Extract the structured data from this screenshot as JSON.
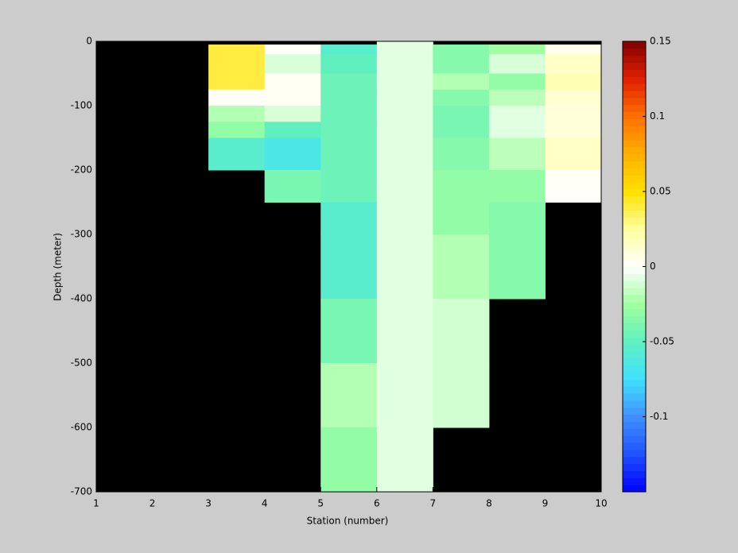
{
  "chart_data": {
    "type": "heatmap",
    "xlabel": "Station (number)",
    "ylabel": "Depth (meter)",
    "x_edges": [
      1,
      2,
      3,
      4,
      5,
      6,
      7,
      8,
      9,
      10
    ],
    "y_edges": [
      0,
      -5,
      -20,
      -30,
      -50,
      -75,
      -100,
      -125,
      -150,
      -200,
      -250,
      -300,
      -400,
      -500,
      -600,
      -700
    ],
    "z": [
      [
        null,
        null,
        null,
        null,
        null,
        -0.008,
        null,
        null,
        null
      ],
      [
        null,
        null,
        0.04,
        0.002,
        -0.055,
        -0.008,
        -0.035,
        -0.025,
        0.005
      ],
      [
        null,
        null,
        0.04,
        -0.01,
        -0.05,
        -0.008,
        -0.035,
        -0.01,
        0.015
      ],
      [
        null,
        null,
        0.04,
        -0.01,
        -0.05,
        -0.008,
        -0.035,
        -0.01,
        0.015
      ],
      [
        null,
        null,
        0.04,
        0.003,
        -0.045,
        -0.008,
        -0.02,
        -0.03,
        0.02
      ],
      [
        null,
        null,
        0.002,
        0.003,
        -0.045,
        -0.008,
        -0.035,
        -0.018,
        0.012
      ],
      [
        null,
        null,
        -0.02,
        -0.01,
        -0.045,
        -0.008,
        -0.04,
        -0.008,
        0.01
      ],
      [
        null,
        null,
        -0.03,
        -0.05,
        -0.045,
        -0.008,
        -0.04,
        -0.008,
        0.01
      ],
      [
        null,
        null,
        -0.055,
        -0.065,
        -0.045,
        -0.008,
        -0.035,
        -0.018,
        0.015
      ],
      [
        null,
        null,
        null,
        -0.04,
        -0.045,
        -0.008,
        -0.03,
        -0.03,
        0.002
      ],
      [
        null,
        null,
        null,
        null,
        -0.055,
        -0.008,
        -0.03,
        -0.035,
        null
      ],
      [
        null,
        null,
        null,
        null,
        -0.055,
        -0.008,
        -0.02,
        -0.035,
        null
      ],
      [
        null,
        null,
        null,
        null,
        -0.04,
        -0.008,
        -0.012,
        null,
        null
      ],
      [
        null,
        null,
        null,
        null,
        -0.02,
        -0.008,
        -0.012,
        null,
        null
      ],
      [
        null,
        null,
        null,
        null,
        -0.03,
        -0.008,
        null,
        null,
        null
      ]
    ],
    "xlim": [
      1,
      10
    ],
    "ylim": [
      -700,
      0
    ],
    "xticks": [
      1,
      2,
      3,
      4,
      5,
      6,
      7,
      8,
      9,
      10
    ],
    "yticks": [
      0,
      -100,
      -200,
      -300,
      -400,
      -500,
      -600,
      -700
    ],
    "clim": [
      -0.15,
      0.15
    ],
    "cticks": [
      -0.1,
      -0.05,
      0,
      0.05,
      0.1,
      0.15
    ],
    "missing_color": "#000000",
    "colormap": [
      "#0000ff",
      "#2050ff",
      "#4090ff",
      "#40e0ff",
      "#60f0c0",
      "#a0ffa0",
      "#ffffff",
      "#ffffa0",
      "#ffe000",
      "#ffb000",
      "#ff7000",
      "#e02000",
      "#800000"
    ]
  }
}
